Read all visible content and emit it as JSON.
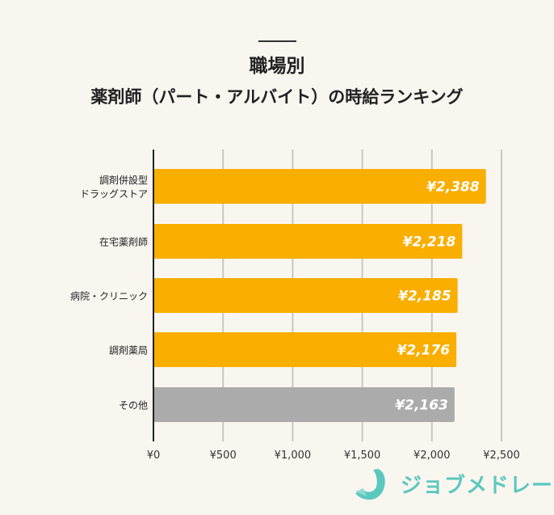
{
  "title": {
    "line1": "職場別",
    "line2": "薬剤師（パート・アルバイト）の時給ランキング"
  },
  "chart_data": {
    "type": "bar",
    "orientation": "horizontal",
    "categories": [
      [
        "調剤併設型",
        "ドラッグストア"
      ],
      [
        "在宅薬剤師"
      ],
      [
        "病院・クリニック"
      ],
      [
        "調剤薬局"
      ],
      [
        "その他"
      ]
    ],
    "values": [
      2388,
      2218,
      2185,
      2176,
      2163
    ],
    "data_labels": [
      "¥2,388",
      "¥2,218",
      "¥2,185",
      "¥2,176",
      "¥2,163"
    ],
    "bar_colors": [
      "#f9ae00",
      "#f9ae00",
      "#f9ae00",
      "#f9ae00",
      "#ababab"
    ],
    "xlim": [
      0,
      2500
    ],
    "xticks": [
      0,
      500,
      1000,
      1500,
      2000,
      2500
    ],
    "xtick_labels": [
      "¥0",
      "¥500",
      "¥1,000",
      "¥1,500",
      "¥2,000",
      "¥2,500"
    ],
    "grid": true,
    "xlabel": "",
    "ylabel": ""
  },
  "logo": {
    "text": "ジョブメドレー",
    "color": "#5bc8be"
  }
}
